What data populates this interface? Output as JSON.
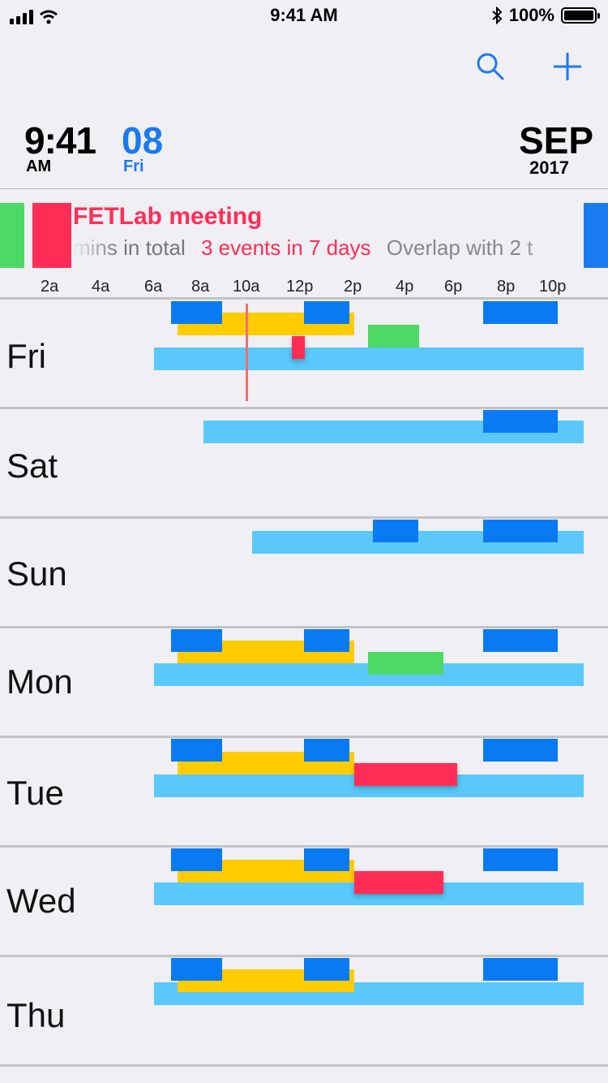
{
  "status_bar": {
    "time": "9:41 AM",
    "battery": "100%",
    "bluetooth_icon": "bluetooth-icon",
    "signal_icon": "signal-icon",
    "wifi_icon": "wifi-icon"
  },
  "toolbar": {
    "search_icon": "search-icon",
    "add_icon": "plus-icon"
  },
  "header": {
    "time": "9:41",
    "ampm": "AM",
    "day_number": "08",
    "day_name": "Fri",
    "month": "SEP",
    "year": "2017"
  },
  "selected_event": {
    "title": "FETLab meeting",
    "meta_total": "mins in total",
    "meta_events": "3 events in 7 days",
    "meta_overlap": "Overlap with 2 t"
  },
  "time_axis": [
    "2a",
    "4a",
    "6a",
    "8a",
    "10a",
    "12p",
    "2p",
    "4p",
    "6p",
    "8p",
    "10p"
  ],
  "days": [
    "Fri",
    "Sat",
    "Sun",
    "Mon",
    "Tue",
    "Wed",
    "Thu"
  ],
  "colors": {
    "light_blue": "#5ac8fa",
    "blue": "#0a7af2",
    "yellow": "#ffcc00",
    "green": "#4cd964",
    "red": "#ff2d55",
    "accent": "#1a7af0"
  }
}
